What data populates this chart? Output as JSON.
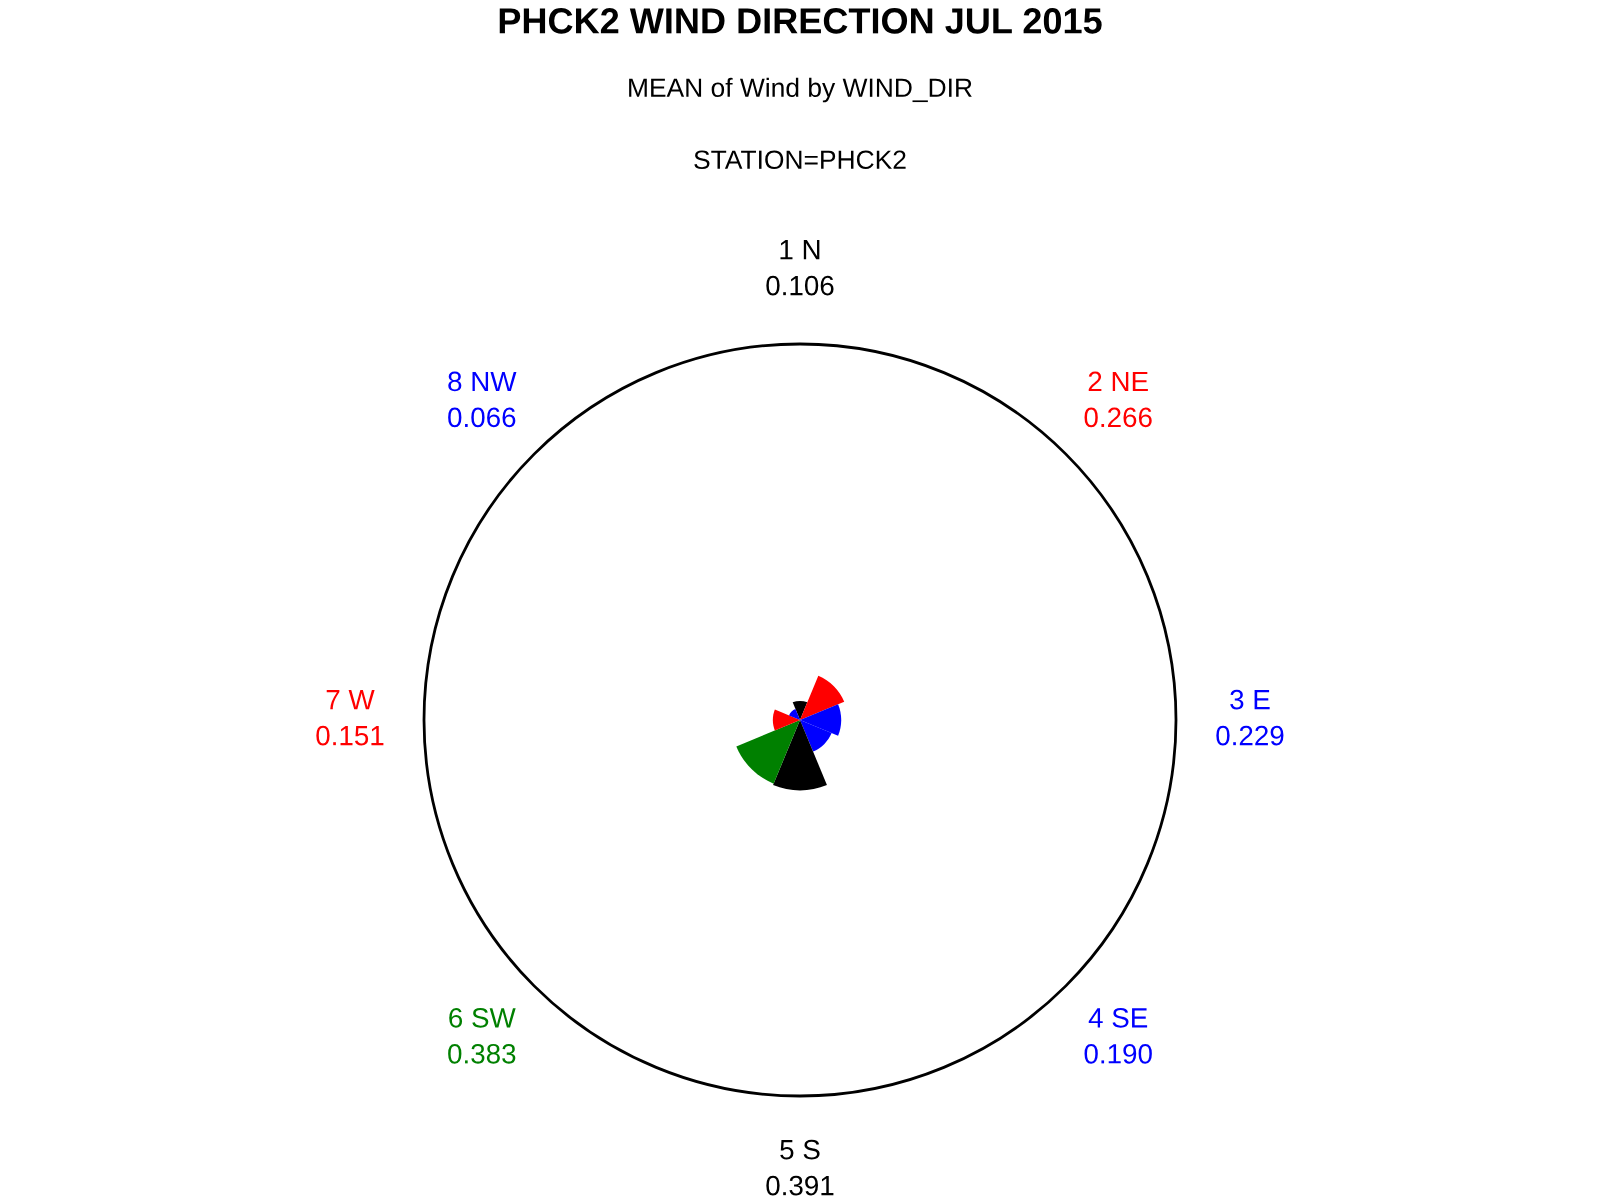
{
  "chart_data": {
    "type": "other",
    "title": "PHCK2 WIND DIRECTION JUL 2015",
    "subtitle": "MEAN of Wind by WIND_DIR",
    "annotations": [
      "STATION=PHCK2"
    ],
    "categories": [
      "1 N",
      "2 NE",
      "3 E",
      "4 SE",
      "5 S",
      "6 SW",
      "7 W",
      "8 NW"
    ],
    "values": [
      0.106,
      0.266,
      0.229,
      0.19,
      0.391,
      0.383,
      0.151,
      0.066
    ],
    "colors": [
      "#000000",
      "#ff0000",
      "#0000ff",
      "#0000ff",
      "#000000",
      "#008000",
      "#ff0000",
      "#0000ff"
    ],
    "value_labels": [
      "0.106",
      "0.266",
      "0.229",
      "0.190",
      "0.391",
      "0.383",
      "0.151",
      "0.066"
    ]
  }
}
